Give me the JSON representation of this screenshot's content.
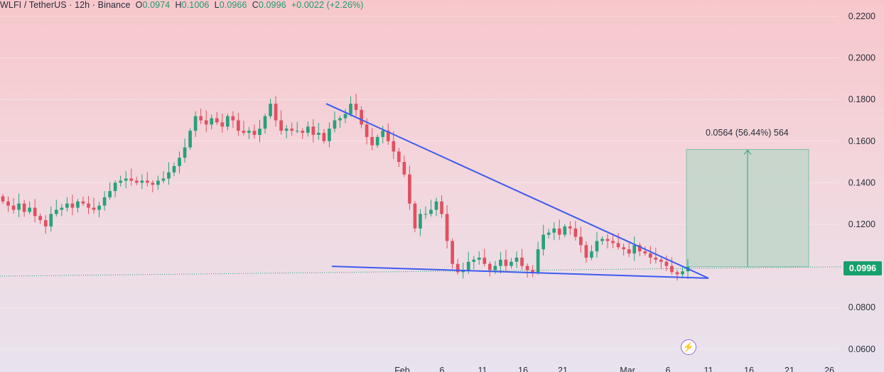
{
  "header": {
    "symbol": "WLFI / TetherUS · 12h · Binance",
    "o_label": "O",
    "o_value": "0.0974",
    "h_label": "H",
    "h_value": "0.1006",
    "l_label": "L",
    "l_value": "0.0966",
    "c_label": "C",
    "c_value": "0.0996",
    "change": "+0.0022 (+2.26%)"
  },
  "price_badge": "0.0996",
  "measure_label": "0.0564 (56.44%) 564",
  "icons": {
    "bolt": "lightning-bolt-icon"
  },
  "colors": {
    "up": "#26a17b",
    "down": "#e0505f",
    "trendline": "#3d5bf0",
    "measure_fill": "#b9d6c7",
    "badge": "#18a06c"
  },
  "chart_data": {
    "type": "candlestick",
    "symbol": "WLFI / TetherUS",
    "interval": "12h",
    "exchange": "Binance",
    "ylim": [
      0.06,
      0.22
    ],
    "y_ticks": [
      "0.2200",
      "0.2000",
      "0.1800",
      "0.1600",
      "0.1400",
      "0.1200",
      "0.0800",
      "0.0600"
    ],
    "x_ticks": [
      "Feb",
      "6",
      "11",
      "16",
      "21",
      "Mar",
      "6",
      "11",
      "16",
      "21",
      "26"
    ],
    "last_price": 0.0996,
    "candles_close": [
      0.131,
      0.129,
      0.127,
      0.13,
      0.126,
      0.128,
      0.124,
      0.122,
      0.119,
      0.125,
      0.127,
      0.128,
      0.13,
      0.128,
      0.131,
      0.13,
      0.128,
      0.127,
      0.129,
      0.133,
      0.136,
      0.14,
      0.141,
      0.142,
      0.141,
      0.14,
      0.141,
      0.14,
      0.139,
      0.141,
      0.142,
      0.145,
      0.148,
      0.152,
      0.157,
      0.165,
      0.172,
      0.17,
      0.168,
      0.171,
      0.169,
      0.167,
      0.172,
      0.17,
      0.165,
      0.164,
      0.165,
      0.163,
      0.166,
      0.172,
      0.178,
      0.17,
      0.165,
      0.166,
      0.165,
      0.165,
      0.164,
      0.167,
      0.163,
      0.164,
      0.16,
      0.166,
      0.17,
      0.171,
      0.173,
      0.178,
      0.175,
      0.168,
      0.162,
      0.158,
      0.162,
      0.165,
      0.16,
      0.155,
      0.15,
      0.144,
      0.13,
      0.118,
      0.125,
      0.125,
      0.127,
      0.131,
      0.125,
      0.112,
      0.101,
      0.097,
      0.098,
      0.102,
      0.103,
      0.104,
      0.101,
      0.098,
      0.1,
      0.103,
      0.1,
      0.102,
      0.104,
      0.1,
      0.098,
      0.097,
      0.108,
      0.115,
      0.116,
      0.118,
      0.115,
      0.119,
      0.118,
      0.114,
      0.11,
      0.104,
      0.107,
      0.112,
      0.113,
      0.112,
      0.111,
      0.109,
      0.108,
      0.106,
      0.11,
      0.107,
      0.106,
      0.104,
      0.103,
      0.102,
      0.1,
      0.097,
      0.096,
      0.0974,
      0.0996
    ],
    "trendlines": [
      {
        "from": {
          "x": "2025-01-26",
          "y": 0.178
        },
        "to": {
          "x": "2025-03-07",
          "y": 0.094
        }
      },
      {
        "from": {
          "x": "2025-01-26",
          "y": 0.0998
        },
        "to": {
          "x": "2025-03-07",
          "y": 0.0941
        }
      }
    ],
    "measure": {
      "from": 0.0996,
      "to": 0.156,
      "change": 0.0564,
      "percent": "56.44%",
      "bars": 564
    }
  }
}
